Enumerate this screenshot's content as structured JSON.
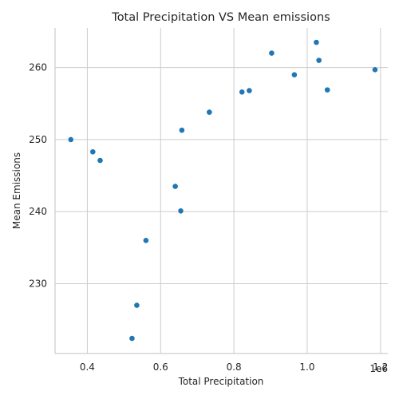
{
  "chart_data": {
    "type": "scatter",
    "title": "Total Precipitation VS Mean emissions",
    "xlabel": "Total Precipitation",
    "ylabel": "Mean Emissions",
    "x_offset_label": "1e6",
    "xlim": [
      0.312,
      1.22
    ],
    "ylim": [
      220.3,
      265.5
    ],
    "x_ticks": [
      0.4,
      0.6,
      0.8,
      1.0,
      1.2
    ],
    "x_tick_labels": [
      "0.4",
      "0.6",
      "0.8",
      "1.0",
      "1.2"
    ],
    "y_ticks": [
      230,
      240,
      250,
      260
    ],
    "y_tick_labels": [
      "230",
      "240",
      "250",
      "260"
    ],
    "grid": true,
    "color": "#1f77b4",
    "points": [
      {
        "x": 0.355,
        "y": 250.0
      },
      {
        "x": 0.415,
        "y": 248.3
      },
      {
        "x": 0.435,
        "y": 247.1
      },
      {
        "x": 0.522,
        "y": 222.4
      },
      {
        "x": 0.535,
        "y": 227.0
      },
      {
        "x": 0.56,
        "y": 236.0
      },
      {
        "x": 0.64,
        "y": 243.5
      },
      {
        "x": 0.655,
        "y": 240.1
      },
      {
        "x": 0.658,
        "y": 251.3
      },
      {
        "x": 0.733,
        "y": 253.8
      },
      {
        "x": 0.822,
        "y": 256.6
      },
      {
        "x": 0.842,
        "y": 256.8
      },
      {
        "x": 0.903,
        "y": 262.0
      },
      {
        "x": 0.965,
        "y": 259.0
      },
      {
        "x": 1.025,
        "y": 263.5
      },
      {
        "x": 1.032,
        "y": 261.0
      },
      {
        "x": 1.055,
        "y": 256.9
      },
      {
        "x": 1.185,
        "y": 259.7
      }
    ]
  }
}
